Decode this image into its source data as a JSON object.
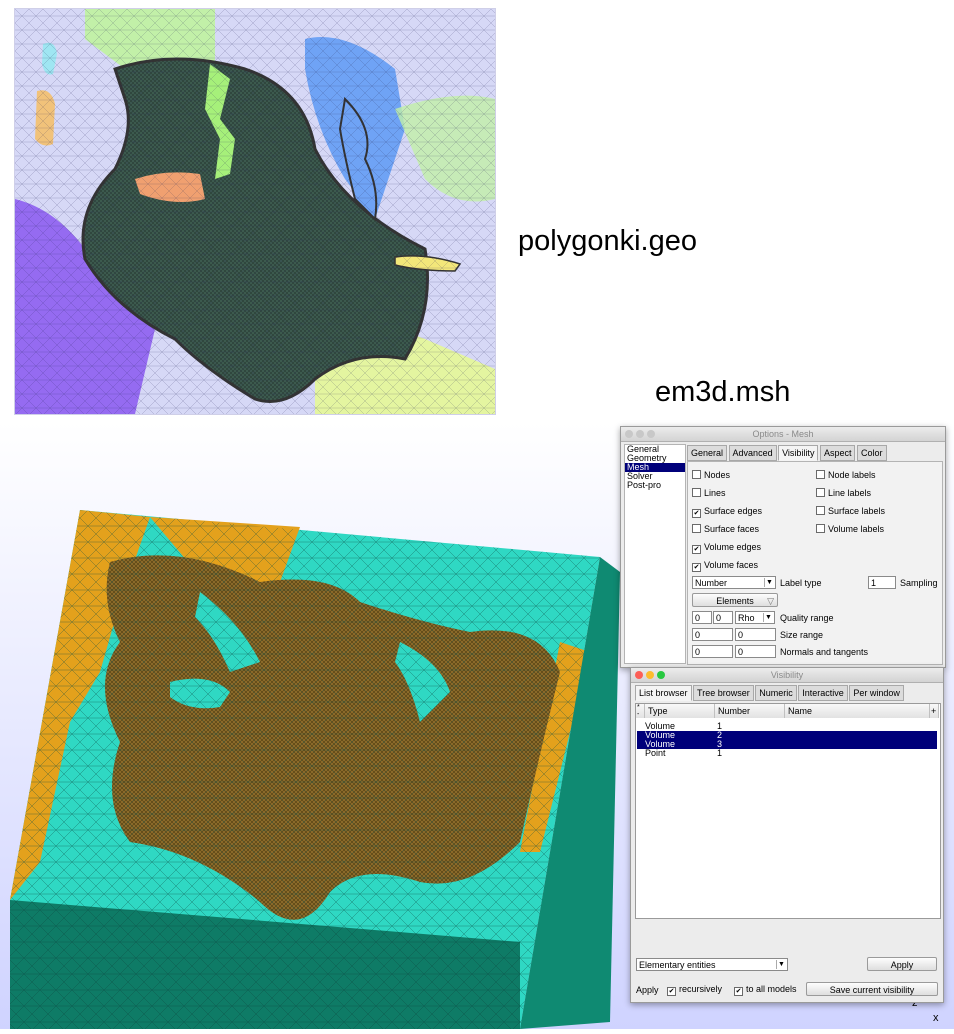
{
  "captions": {
    "top": "polygonki.geo",
    "bottom": "em3d.msh"
  },
  "colors": {
    "land_top": "#3c5a4e",
    "sea_top": "#8a8ee8",
    "sardinia": "#f1c27a",
    "corsica": "#9fe6f2",
    "italy_south": "#a6f07a",
    "sicily": "#f0a070",
    "aegean": "#6fa3f5",
    "libya": "#e4f5a0",
    "tyrrhenian": "#8a58f0",
    "adriatic": "#c2f0a8",
    "crete": "#f3e77a",
    "teal": "#2fd8c3",
    "orange": "#e3a11c",
    "land_3d": "#8a6a2a",
    "selection": "#00007a"
  },
  "options_window": {
    "title": "Options - Mesh",
    "tree": [
      "General",
      "Geometry",
      "Mesh",
      "Solver",
      "Post-pro"
    ],
    "selected_tree": "Mesh",
    "tabs": [
      "General",
      "Advanced",
      "Visibility",
      "Aspect",
      "Color"
    ],
    "active_tab": "Visibility",
    "checks_left": [
      {
        "label": "Nodes",
        "checked": false
      },
      {
        "label": "Lines",
        "checked": false
      },
      {
        "label": "Surface edges",
        "checked": true
      },
      {
        "label": "Surface faces",
        "checked": false
      },
      {
        "label": "Volume edges",
        "checked": true
      },
      {
        "label": "Volume faces",
        "checked": true
      }
    ],
    "checks_right": [
      {
        "label": "Node labels",
        "checked": false
      },
      {
        "label": "Line labels",
        "checked": false
      },
      {
        "label": "Surface labels",
        "checked": false
      },
      {
        "label": "Volume labels",
        "checked": false
      }
    ],
    "label_type_value": "Number",
    "label_type_label": "Label type",
    "sampling_value": "1",
    "sampling_label": "Sampling",
    "elements_button": "Elements",
    "filter_icon": "filter-icon",
    "quality_min": "0",
    "quality_max": "0",
    "quality_measure": "Rho",
    "quality_label": "Quality range",
    "size_min": "0",
    "size_max": "0",
    "size_label": "Size range",
    "normals_a": "0",
    "normals_b": "0",
    "normals_label": "Normals and tangents"
  },
  "visibility_window": {
    "title": "Visibility",
    "tabs": [
      "List browser",
      "Tree browser",
      "Numeric",
      "Interactive",
      "Per window"
    ],
    "active_tab": "List browser",
    "sort_up": "*",
    "sort_down": "-",
    "add": "+",
    "columns": [
      "Type",
      "Number",
      "Name"
    ],
    "rows": [
      {
        "type": "Volume",
        "number": "1",
        "selected": false
      },
      {
        "type": "Volume",
        "number": "2",
        "selected": true
      },
      {
        "type": "Volume",
        "number": "3",
        "selected": true
      },
      {
        "type": "Point",
        "number": "1",
        "selected": false
      }
    ],
    "entity_select": "Elementary entities",
    "apply_button": "Apply",
    "apply_label": "Apply",
    "recursively": "recursively",
    "to_all_models": "to all models",
    "save_button": "Save current visibility"
  },
  "axes": {
    "z": "z",
    "x": "x"
  }
}
